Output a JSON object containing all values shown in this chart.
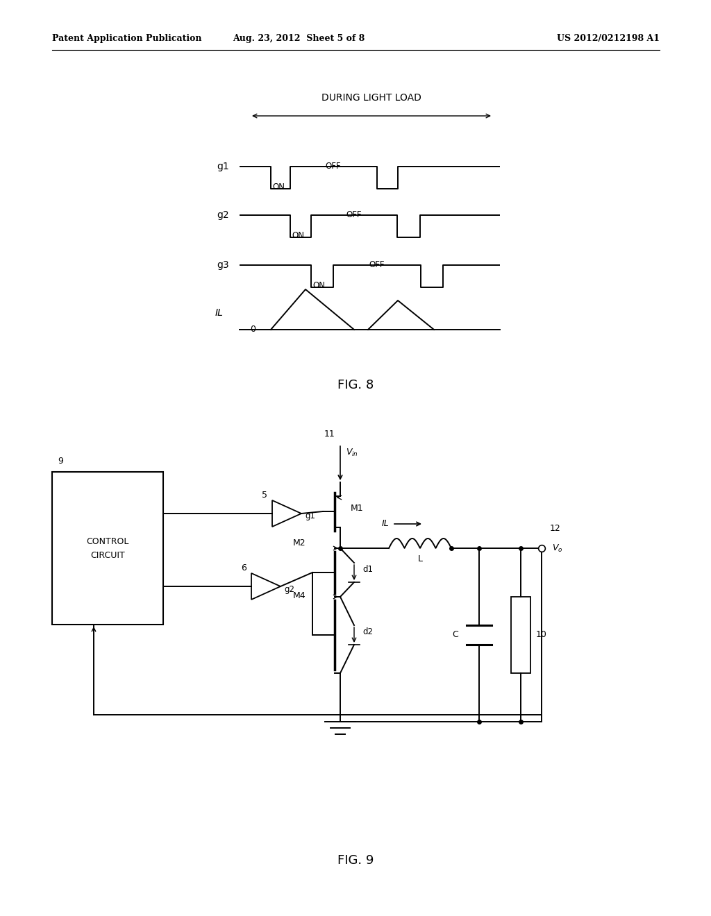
{
  "bg_color": "#ffffff",
  "header_left": "Patent Application Publication",
  "header_center": "Aug. 23, 2012  Sheet 5 of 8",
  "header_right": "US 2012/0212198 A1",
  "fig8_label": "FIG. 8",
  "fig9_label": "FIG. 9",
  "during_light_load": "DURING LIGHT LOAD"
}
